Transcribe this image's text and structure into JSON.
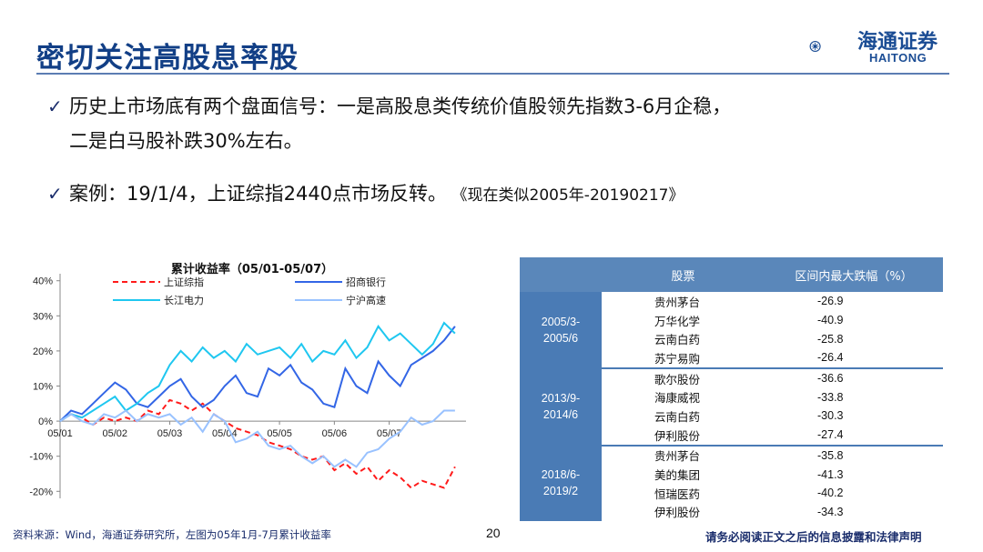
{
  "header": {
    "title": "密切关注高股息率股",
    "logo_cn": "海通证券",
    "logo_en": "HAITONG",
    "brand_color": "#1a4c94"
  },
  "bullets": [
    {
      "icon": "checkmark-icon",
      "lines": [
        "历史上市场底有两个盘面信号：一是高股息类传统价值股领先指数3-6月企稳，",
        "二是白马股补跌30%左右。"
      ]
    },
    {
      "icon": "checkmark-icon",
      "text": "案例：19/1/4，上证综指2440点市场反转。",
      "quote": "《现在类似2005年-20190217》"
    }
  ],
  "chart_data": {
    "type": "line",
    "title": "累计收益率（05/01-05/07）",
    "xlabel": "",
    "ylabel": "",
    "x_ticks": [
      "05/01",
      "05/02",
      "05/03",
      "05/04",
      "05/05",
      "05/06",
      "05/07"
    ],
    "y_ticks": [
      "40%",
      "30%",
      "20%",
      "10%",
      "0%",
      "-10%",
      "-20%"
    ],
    "ylim": [
      -0.22,
      0.42
    ],
    "grid": false,
    "legend_position": "top",
    "series": [
      {
        "name": "上证综指",
        "color": "#ff1a1a",
        "dash": true,
        "x": [
          0,
          0.2,
          0.4,
          0.6,
          0.8,
          1.0,
          1.2,
          1.4,
          1.6,
          1.8,
          2.0,
          2.2,
          2.4,
          2.6,
          2.8,
          3.0,
          3.2,
          3.4,
          3.6,
          3.8,
          4.0,
          4.2,
          4.4,
          4.6,
          4.8,
          5.0,
          5.2,
          5.4,
          5.6,
          5.8,
          6.0,
          6.2,
          6.4,
          6.6,
          6.8,
          7.0,
          7.2
        ],
        "y": [
          0,
          0.02,
          0.01,
          -0.01,
          0.01,
          0.0,
          0.01,
          0.0,
          0.03,
          0.02,
          0.06,
          0.05,
          0.03,
          0.05,
          0.02,
          0.0,
          -0.02,
          -0.03,
          -0.04,
          -0.06,
          -0.07,
          -0.08,
          -0.1,
          -0.11,
          -0.1,
          -0.14,
          -0.12,
          -0.15,
          -0.13,
          -0.17,
          -0.14,
          -0.16,
          -0.19,
          -0.17,
          -0.18,
          -0.19,
          -0.13
        ]
      },
      {
        "name": "招商银行",
        "color": "#3366e6",
        "dash": false,
        "x": [
          0,
          0.2,
          0.4,
          0.6,
          0.8,
          1.0,
          1.2,
          1.4,
          1.6,
          1.8,
          2.0,
          2.2,
          2.4,
          2.6,
          2.8,
          3.0,
          3.2,
          3.4,
          3.6,
          3.8,
          4.0,
          4.2,
          4.4,
          4.6,
          4.8,
          5.0,
          5.2,
          5.4,
          5.6,
          5.8,
          6.0,
          6.2,
          6.4,
          6.6,
          6.8,
          7.0,
          7.2
        ],
        "y": [
          0,
          0.03,
          0.02,
          0.05,
          0.08,
          0.11,
          0.09,
          0.05,
          0.04,
          0.07,
          0.1,
          0.12,
          0.07,
          0.04,
          0.06,
          0.1,
          0.13,
          0.08,
          0.07,
          0.15,
          0.13,
          0.16,
          0.11,
          0.09,
          0.05,
          0.04,
          0.15,
          0.1,
          0.08,
          0.17,
          0.13,
          0.1,
          0.16,
          0.18,
          0.2,
          0.23,
          0.27
        ]
      },
      {
        "name": "长江电力",
        "color": "#1fc7f0",
        "dash": false,
        "x": [
          0,
          0.2,
          0.4,
          0.6,
          0.8,
          1.0,
          1.2,
          1.4,
          1.6,
          1.8,
          2.0,
          2.2,
          2.4,
          2.6,
          2.8,
          3.0,
          3.2,
          3.4,
          3.6,
          3.8,
          4.0,
          4.2,
          4.4,
          4.6,
          4.8,
          5.0,
          5.2,
          5.4,
          5.6,
          5.8,
          6.0,
          6.2,
          6.4,
          6.6,
          6.8,
          7.0,
          7.2
        ],
        "y": [
          0,
          0.02,
          0.01,
          0.03,
          0.05,
          0.07,
          0.03,
          0.05,
          0.08,
          0.1,
          0.16,
          0.2,
          0.17,
          0.21,
          0.18,
          0.2,
          0.17,
          0.22,
          0.19,
          0.2,
          0.21,
          0.18,
          0.22,
          0.17,
          0.2,
          0.19,
          0.23,
          0.18,
          0.21,
          0.27,
          0.23,
          0.25,
          0.22,
          0.19,
          0.22,
          0.28,
          0.25
        ]
      },
      {
        "name": "宁沪高速",
        "color": "#99c2ff",
        "dash": false,
        "x": [
          0,
          0.2,
          0.4,
          0.6,
          0.8,
          1.0,
          1.2,
          1.4,
          1.6,
          1.8,
          2.0,
          2.2,
          2.4,
          2.6,
          2.8,
          3.0,
          3.2,
          3.4,
          3.6,
          3.8,
          4.0,
          4.2,
          4.4,
          4.6,
          4.8,
          5.0,
          5.2,
          5.4,
          5.6,
          5.8,
          6.0,
          6.2,
          6.4,
          6.6,
          6.8,
          7.0,
          7.2
        ],
        "y": [
          0,
          0.02,
          0.0,
          -0.01,
          0.02,
          0.01,
          0.03,
          0.0,
          0.02,
          0.01,
          0.02,
          -0.01,
          0.01,
          -0.03,
          0.02,
          0.0,
          -0.06,
          -0.05,
          -0.03,
          -0.07,
          -0.08,
          -0.07,
          -0.1,
          -0.12,
          -0.1,
          -0.13,
          -0.11,
          -0.13,
          -0.09,
          -0.08,
          -0.05,
          -0.03,
          0.01,
          -0.01,
          0.0,
          0.03,
          0.03
        ]
      }
    ]
  },
  "table": {
    "header_bg": "#5a87ba",
    "columns": [
      "",
      "股票",
      "区间内最大跌幅（%）"
    ],
    "groups": [
      {
        "period": "2005/3-2005/6",
        "rows": [
          {
            "stock": "贵州茅台",
            "drop": "-26.9"
          },
          {
            "stock": "万华化学",
            "drop": "-40.9"
          },
          {
            "stock": "云南白药",
            "drop": "-25.8"
          },
          {
            "stock": "苏宁易购",
            "drop": "-26.4"
          }
        ]
      },
      {
        "period": "2013/9-2014/6",
        "rows": [
          {
            "stock": "歌尔股份",
            "drop": "-36.6"
          },
          {
            "stock": "海康威视",
            "drop": "-33.8"
          },
          {
            "stock": "云南白药",
            "drop": "-30.3"
          },
          {
            "stock": "伊利股份",
            "drop": "-27.4"
          }
        ]
      },
      {
        "period": "2018/6-2019/2",
        "rows": [
          {
            "stock": "贵州茅台",
            "drop": "-35.8"
          },
          {
            "stock": "美的集团",
            "drop": "-41.3"
          },
          {
            "stock": "恒瑞医药",
            "drop": "-40.2"
          },
          {
            "stock": "伊利股份",
            "drop": "-34.3"
          }
        ]
      }
    ]
  },
  "footer": {
    "source": "资料来源：Wind，海通证券研究所，左图为05年1月-7月累计收益率",
    "page": "20",
    "disclaimer": "请务必阅读正文之后的信息披露和法律声明"
  }
}
